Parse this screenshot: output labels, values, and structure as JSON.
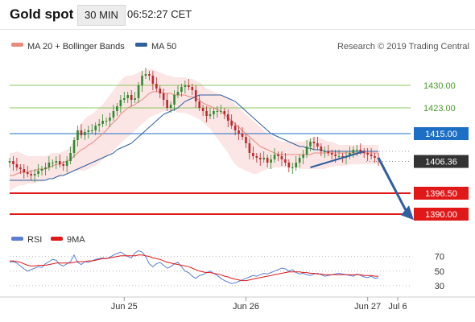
{
  "header": {
    "title": "Gold spot",
    "timeframe": "30 MIN",
    "time": "06:52:27 CET"
  },
  "colors": {
    "ma20": "#e88b7d",
    "bands_fill": "#fadcdc",
    "ma50": "#2f5f9f",
    "up_candle": "#2e8b2e",
    "down_candle": "#c0262a",
    "green_level": "#8cc861",
    "blue_level": "#1d6fc6",
    "red_level": "#e01818",
    "dark_label": "#333333",
    "arrow": "#2f5f9f",
    "rsi": "#5b7fd6",
    "rsi_ma": "#e01818"
  },
  "chart_data": [
    {
      "type": "candlestick",
      "title": "Gold spot",
      "source": "Research © 2019 Trading Central",
      "legend": [
        {
          "name": "MA 20 + Bollinger Bands",
          "color": "#e88b7d"
        },
        {
          "name": "MA 50",
          "color": "#2f5f9f"
        }
      ],
      "x_ticks": [
        "Jun 25",
        "Jun 26",
        "Jun 27",
        "Jul 6"
      ],
      "ylim": [
        1386,
        1438
      ],
      "levels": [
        {
          "value": 1430.0,
          "label": "1430.00",
          "kind": "resistance",
          "color": "#8cc861"
        },
        {
          "value": 1423.0,
          "label": "1423.00",
          "kind": "resistance",
          "color": "#8cc861"
        },
        {
          "value": 1415.0,
          "label": "1415.00",
          "kind": "pivot",
          "color": "#1d6fc6"
        },
        {
          "value": 1406.36,
          "label": "1406.36",
          "kind": "last",
          "color": "#333333"
        },
        {
          "value": 1396.5,
          "label": "1396.50",
          "kind": "support",
          "color": "#e01818"
        },
        {
          "value": 1390.0,
          "label": "1390.00",
          "kind": "support",
          "color": "#e01818"
        }
      ],
      "close": [
        1406.5,
        1405.5,
        1404.5,
        1404,
        1403,
        1402.5,
        1402,
        1402.5,
        1403.5,
        1404,
        1404.5,
        1406,
        1406,
        1406.5,
        1405.5,
        1405,
        1406.5,
        1409,
        1413,
        1416,
        1414.5,
        1415.5,
        1416,
        1416,
        1417.5,
        1418,
        1419,
        1419,
        1420,
        1422,
        1423.5,
        1425.5,
        1426,
        1427,
        1425.5,
        1426,
        1430,
        1433,
        1433.5,
        1433,
        1430.5,
        1429,
        1427.5,
        1425.5,
        1423,
        1424,
        1427,
        1428,
        1429.5,
        1430,
        1429.5,
        1428.5,
        1425,
        1423,
        1422,
        1420.5,
        1421,
        1422,
        1422,
        1422,
        1421,
        1419,
        1417.5,
        1416,
        1415,
        1414,
        1412,
        1409,
        1408,
        1407.5,
        1407,
        1407.5,
        1406,
        1407,
        1408.5,
        1408,
        1407,
        1406,
        1404.5,
        1404.5,
        1406,
        1407.5,
        1408.5,
        1411,
        1412.5,
        1412,
        1411,
        1409.5,
        1409.5,
        1409,
        1408.5,
        1408,
        1408,
        1407.5,
        1408,
        1409,
        1410,
        1410,
        1409.5,
        1409,
        1408.5,
        1408,
        1407.5,
        1407
      ],
      "ma20": [
        1402,
        1402,
        1402.5,
        1403,
        1403,
        1403,
        1403.5,
        1403.5,
        1404,
        1404,
        1404,
        1404.5,
        1405,
        1405.5,
        1405.5,
        1406,
        1406.5,
        1407,
        1408,
        1409,
        1410,
        1410.5,
        1411.5,
        1412,
        1413,
        1414,
        1415,
        1416,
        1417.5,
        1418.5,
        1419.5,
        1421,
        1422,
        1423,
        1423.5,
        1424,
        1425,
        1425.5,
        1426.5,
        1427.5,
        1428,
        1428,
        1428,
        1427.5,
        1427.5,
        1427.5,
        1427,
        1427,
        1427,
        1427,
        1426.5,
        1426.5,
        1426,
        1425.5,
        1424.5,
        1424,
        1423.5,
        1423,
        1422.5,
        1422,
        1421,
        1420,
        1419,
        1418,
        1417,
        1416,
        1415,
        1414,
        1413,
        1412,
        1411,
        1410.5,
        1410,
        1409.5,
        1409,
        1408.5,
        1408.5,
        1408.5,
        1408.5,
        1408.5,
        1408.5,
        1408.5,
        1408.5,
        1408.5,
        1408.5,
        1409,
        1409,
        1409,
        1409,
        1409,
        1409,
        1409,
        1409,
        1409,
        1409,
        1409,
        1409,
        1409,
        1409,
        1409,
        1409,
        1409,
        1409,
        1409
      ],
      "bb_upper": [
        1409,
        1409,
        1409.5,
        1409,
        1408.5,
        1408,
        1408,
        1408,
        1408,
        1408,
        1408,
        1408.5,
        1409,
        1409,
        1409,
        1409.5,
        1410,
        1411,
        1413,
        1416,
        1418,
        1419.5,
        1420.5,
        1421,
        1422,
        1423,
        1424,
        1425.5,
        1427,
        1428.5,
        1430,
        1431.5,
        1432.5,
        1433,
        1433,
        1433.5,
        1434,
        1434.5,
        1435,
        1435,
        1435,
        1434.5,
        1434,
        1433.5,
        1433,
        1433,
        1432.5,
        1432.5,
        1432.5,
        1432.5,
        1432,
        1432,
        1431.5,
        1431,
        1430,
        1429,
        1428.5,
        1428,
        1427.5,
        1427,
        1426.5,
        1426,
        1425,
        1424,
        1423,
        1422,
        1421,
        1420,
        1419,
        1418,
        1417,
        1416,
        1415,
        1414.5,
        1413.5,
        1413,
        1412.5,
        1412.5,
        1412.5,
        1412.5,
        1412.5,
        1412.5,
        1412.5,
        1413,
        1413.5,
        1414,
        1414,
        1413.5,
        1413,
        1412.5,
        1412.5,
        1412,
        1411.5,
        1411.5,
        1411.5,
        1411.5,
        1411.5,
        1411.5,
        1411.5,
        1411.5,
        1411.5,
        1411.5,
        1411.5,
        1411.5
      ],
      "bb_lower": [
        1397,
        1398,
        1398.5,
        1399,
        1399,
        1399.5,
        1399.5,
        1399.5,
        1400,
        1400,
        1400.5,
        1401,
        1401,
        1401.5,
        1401.5,
        1402,
        1402.5,
        1403,
        1403.5,
        1403.5,
        1403.5,
        1403.5,
        1404,
        1404.5,
        1405,
        1406,
        1407,
        1408,
        1409,
        1410,
        1411,
        1412,
        1413,
        1414,
        1415,
        1416,
        1417,
        1418,
        1419,
        1420,
        1420.5,
        1421,
        1421.5,
        1422,
        1422,
        1422,
        1422,
        1421.5,
        1421.5,
        1421.5,
        1421,
        1420.5,
        1420,
        1419.5,
        1418.5,
        1417.5,
        1416.5,
        1415,
        1413.5,
        1412,
        1410.5,
        1409,
        1407,
        1405.5,
        1404.5,
        1404,
        1403.5,
        1403,
        1402.5,
        1402.5,
        1403,
        1403.5,
        1404,
        1404,
        1404.5,
        1404.5,
        1404.5,
        1404.5,
        1404.5,
        1404.5,
        1404.5,
        1404,
        1404,
        1404,
        1404,
        1404,
        1404,
        1404,
        1404,
        1404.5,
        1404.5,
        1405,
        1405,
        1405,
        1405,
        1405.5,
        1405.5,
        1405.5,
        1405.5,
        1405.5,
        1405.5,
        1405.5,
        1405.5,
        1405.5
      ],
      "ma50": [
        1400.5,
        1400.5,
        1400.5,
        1400.5,
        1400.5,
        1400.5,
        1400.5,
        1400.5,
        1400.5,
        1400.5,
        1400.5,
        1401,
        1401,
        1401.5,
        1402,
        1402,
        1402.5,
        1403,
        1403.5,
        1404,
        1404.5,
        1405,
        1405.5,
        1406,
        1406.5,
        1407,
        1407.5,
        1408,
        1408.5,
        1409,
        1410,
        1410.5,
        1411,
        1411.5,
        1412,
        1413,
        1414,
        1415,
        1416,
        1417,
        1418,
        1419,
        1420,
        1421,
        1421.5,
        1422,
        1422.5,
        1423,
        1424,
        1425,
        1425.5,
        1426,
        1426.5,
        1427,
        1427,
        1427,
        1427,
        1427,
        1427,
        1427,
        1426.5,
        1426,
        1425.5,
        1425,
        1424,
        1423,
        1422,
        1421,
        1420,
        1419,
        1418,
        1417,
        1416,
        1415,
        1414.5,
        1414,
        1413.5,
        1413,
        1412.5,
        1412,
        1411.5,
        1411,
        1411,
        1410.5,
        1410.5,
        1410,
        1410,
        1410,
        1409.5,
        1409.5,
        1409.5,
        1409.5,
        1409.5,
        1409.5,
        1409.5,
        1409.5,
        1409.5,
        1409.5,
        1409.5,
        1409.5,
        1409.5,
        1409.5,
        1409.5,
        1409.5
      ]
    },
    {
      "type": "line",
      "legend": [
        {
          "name": "RSI",
          "color": "#5b7fd6"
        },
        {
          "name": "9MA",
          "color": "#e01818"
        }
      ],
      "ylim": [
        20,
        85
      ],
      "y_ticks": [
        70,
        50,
        30
      ],
      "rsi": [
        62,
        63,
        61,
        57,
        53,
        50,
        52,
        54,
        56,
        55,
        60,
        63,
        66,
        65,
        59,
        57,
        60,
        63,
        72,
        62,
        59,
        63,
        62,
        64,
        66,
        67,
        68,
        67,
        69,
        72,
        74,
        76,
        73,
        70,
        68,
        75,
        78,
        76,
        70,
        60,
        56,
        60,
        62,
        58,
        54,
        56,
        60,
        62,
        56,
        50,
        48,
        43,
        40,
        44,
        45,
        48,
        50,
        47,
        44,
        40,
        37,
        35,
        33,
        34,
        36,
        38,
        40,
        42,
        44,
        43,
        45,
        47,
        46,
        48,
        50,
        52,
        54,
        53,
        50,
        52,
        48,
        46,
        47,
        45,
        44,
        46,
        47,
        45,
        43,
        44,
        45,
        46,
        47,
        46,
        45,
        44,
        43,
        46,
        44,
        42,
        41,
        43,
        40,
        41
      ],
      "rsi_ma": [
        64,
        64,
        63,
        62,
        60,
        58,
        57,
        57,
        58,
        58,
        58,
        59,
        60,
        61,
        61,
        61,
        61,
        61,
        62,
        63,
        63,
        63,
        64,
        64,
        65,
        66,
        67,
        67,
        68,
        69,
        70,
        71,
        71,
        71,
        71,
        71,
        72,
        72,
        71,
        70,
        68,
        67,
        66,
        64,
        62,
        61,
        60,
        59,
        58,
        57,
        56,
        54,
        52,
        50,
        49,
        48,
        48,
        47,
        46,
        45,
        43,
        42,
        40,
        39,
        38,
        37,
        37,
        38,
        39,
        40,
        41,
        42,
        43,
        44,
        45,
        46,
        47,
        48,
        49,
        49,
        49,
        49,
        48,
        48,
        47,
        47,
        46,
        46,
        45,
        45,
        45,
        45,
        45,
        45,
        45,
        45,
        45,
        45,
        45,
        44,
        44,
        44,
        43,
        43
      ]
    }
  ]
}
